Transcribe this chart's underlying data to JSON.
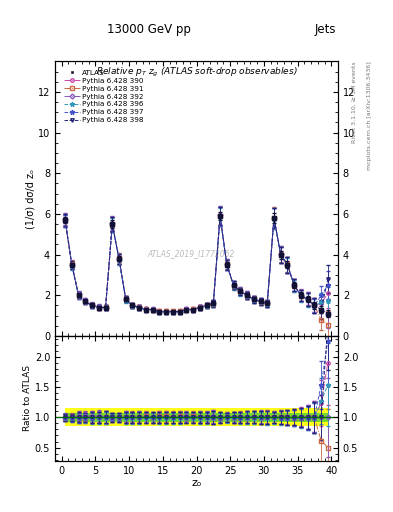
{
  "title_top": "13000 GeV pp",
  "title_right": "Jets",
  "plot_title": "Relative $p_{T}$ $z_{g}$ (ATLAS soft-drop observables)",
  "ylabel_main": "(1/σ) dσ/d zₒ",
  "ylabel_ratio": "Ratio to ATLAS",
  "xlabel": "zₒ",
  "right_label_top": "Rivet 3.1.10, ≥ 3M events",
  "right_label_bottom": "mcplots.cern.ch [arXiv:1306.3436]",
  "watermark": "ATLAS_2019_I1772062",
  "xlim": [
    -1,
    41
  ],
  "ylim_main": [
    0,
    13.5
  ],
  "ylim_ratio": [
    0.28,
    2.35
  ],
  "yticks_main": [
    0,
    2,
    4,
    6,
    8,
    10,
    12
  ],
  "yticks_ratio": [
    0.5,
    1.0,
    1.5,
    2.0
  ],
  "x_data": [
    0.5,
    1.5,
    2.5,
    3.5,
    4.5,
    5.5,
    6.5,
    7.5,
    8.5,
    9.5,
    10.5,
    11.5,
    12.5,
    13.5,
    14.5,
    15.5,
    16.5,
    17.5,
    18.5,
    19.5,
    20.5,
    21.5,
    22.5,
    23.5,
    24.5,
    25.5,
    26.5,
    27.5,
    28.5,
    29.5,
    30.5,
    31.5,
    32.5,
    33.5,
    34.5,
    35.5,
    36.5,
    37.5,
    38.5,
    39.5
  ],
  "atlas_y": [
    5.7,
    3.5,
    2.0,
    1.7,
    1.5,
    1.4,
    1.4,
    5.5,
    3.8,
    1.8,
    1.5,
    1.4,
    1.3,
    1.3,
    1.2,
    1.2,
    1.2,
    1.2,
    1.3,
    1.3,
    1.4,
    1.5,
    1.6,
    5.9,
    3.5,
    2.5,
    2.2,
    2.0,
    1.8,
    1.7,
    1.6,
    5.8,
    4.0,
    3.5,
    2.5,
    2.0,
    1.8,
    1.5,
    1.3,
    1.1
  ],
  "atlas_yerr": [
    0.15,
    0.08,
    0.07,
    0.06,
    0.06,
    0.06,
    0.07,
    0.18,
    0.12,
    0.07,
    0.06,
    0.06,
    0.05,
    0.05,
    0.05,
    0.05,
    0.05,
    0.05,
    0.05,
    0.05,
    0.06,
    0.06,
    0.07,
    0.22,
    0.12,
    0.1,
    0.09,
    0.09,
    0.08,
    0.08,
    0.08,
    0.25,
    0.2,
    0.18,
    0.15,
    0.14,
    0.15,
    0.15,
    0.17,
    0.18
  ],
  "atlas_color": "#111133",
  "atlas_marker": "s",
  "atlas_markersize": 3.5,
  "band_yellow": [
    0.85,
    1.15
  ],
  "band_green": [
    0.93,
    1.07
  ],
  "band_color_yellow": "#ffff00",
  "band_color_green": "#33cc33",
  "series": [
    {
      "label": "Pythia 6.428 390",
      "color": "#cc44aa",
      "linestyle": "-.",
      "marker": "o",
      "markersize": 2.5,
      "mfc": "none",
      "y": [
        5.72,
        3.48,
        2.02,
        1.72,
        1.52,
        1.42,
        1.38,
        5.52,
        3.78,
        1.82,
        1.5,
        1.4,
        1.3,
        1.3,
        1.21,
        1.21,
        1.2,
        1.21,
        1.31,
        1.31,
        1.4,
        1.51,
        1.62,
        5.91,
        3.5,
        2.51,
        2.2,
        2.01,
        1.8,
        1.7,
        1.61,
        5.8,
        4.0,
        3.48,
        2.5,
        2.02,
        1.82,
        1.52,
        1.6,
        2.1
      ],
      "yerr": [
        0.3,
        0.2,
        0.15,
        0.12,
        0.12,
        0.12,
        0.12,
        0.35,
        0.25,
        0.15,
        0.12,
        0.12,
        0.1,
        0.1,
        0.1,
        0.1,
        0.1,
        0.1,
        0.1,
        0.1,
        0.12,
        0.12,
        0.15,
        0.45,
        0.25,
        0.2,
        0.18,
        0.18,
        0.16,
        0.16,
        0.16,
        0.5,
        0.4,
        0.38,
        0.3,
        0.28,
        0.32,
        0.35,
        0.45,
        0.7
      ]
    },
    {
      "label": "Pythia 6.428 391",
      "color": "#cc6644",
      "linestyle": "-.",
      "marker": "s",
      "markersize": 2.5,
      "mfc": "none",
      "y": [
        5.68,
        3.52,
        1.98,
        1.68,
        1.5,
        1.4,
        1.42,
        5.48,
        3.82,
        1.8,
        1.52,
        1.42,
        1.32,
        1.28,
        1.22,
        1.22,
        1.21,
        1.22,
        1.29,
        1.32,
        1.41,
        1.5,
        1.59,
        5.88,
        3.52,
        2.48,
        2.22,
        1.98,
        1.82,
        1.68,
        1.62,
        5.82,
        4.02,
        3.52,
        2.48,
        1.98,
        1.8,
        1.5,
        0.8,
        0.55
      ],
      "yerr": [
        0.3,
        0.2,
        0.15,
        0.12,
        0.12,
        0.12,
        0.12,
        0.35,
        0.25,
        0.15,
        0.12,
        0.12,
        0.1,
        0.1,
        0.1,
        0.1,
        0.1,
        0.1,
        0.1,
        0.1,
        0.12,
        0.12,
        0.15,
        0.45,
        0.25,
        0.2,
        0.18,
        0.18,
        0.16,
        0.16,
        0.16,
        0.5,
        0.4,
        0.38,
        0.3,
        0.28,
        0.32,
        0.35,
        0.5,
        0.7
      ]
    },
    {
      "label": "Pythia 6.428 392",
      "color": "#8855bb",
      "linestyle": "-.",
      "marker": "D",
      "markersize": 2.5,
      "mfc": "none",
      "y": [
        5.75,
        3.5,
        2.05,
        1.75,
        1.53,
        1.43,
        1.4,
        5.55,
        3.8,
        1.82,
        1.51,
        1.41,
        1.31,
        1.31,
        1.2,
        1.2,
        1.2,
        1.2,
        1.32,
        1.3,
        1.42,
        1.52,
        1.63,
        5.93,
        3.52,
        2.52,
        2.21,
        2.02,
        1.81,
        1.72,
        1.6,
        5.81,
        4.01,
        3.5,
        2.52,
        2.0,
        1.82,
        1.52,
        1.3,
        1.1
      ],
      "yerr": [
        0.3,
        0.2,
        0.15,
        0.12,
        0.12,
        0.12,
        0.12,
        0.35,
        0.25,
        0.15,
        0.12,
        0.12,
        0.1,
        0.1,
        0.1,
        0.1,
        0.1,
        0.1,
        0.1,
        0.1,
        0.12,
        0.12,
        0.15,
        0.45,
        0.25,
        0.2,
        0.18,
        0.18,
        0.16,
        0.16,
        0.16,
        0.5,
        0.4,
        0.38,
        0.3,
        0.28,
        0.32,
        0.35,
        0.45,
        0.7
      ]
    },
    {
      "label": "Pythia 6.428 396",
      "color": "#3399bb",
      "linestyle": "--",
      "marker": "*",
      "markersize": 3.5,
      "mfc": "none",
      "y": [
        5.65,
        3.45,
        1.97,
        1.67,
        1.48,
        1.38,
        1.39,
        5.46,
        3.76,
        1.78,
        1.48,
        1.38,
        1.28,
        1.28,
        1.18,
        1.19,
        1.18,
        1.19,
        1.28,
        1.29,
        1.39,
        1.48,
        1.58,
        5.86,
        3.48,
        2.48,
        2.17,
        1.98,
        1.78,
        1.68,
        1.58,
        5.77,
        3.97,
        3.47,
        2.47,
        1.97,
        1.77,
        1.48,
        1.65,
        1.7
      ],
      "yerr": [
        0.3,
        0.2,
        0.15,
        0.12,
        0.12,
        0.12,
        0.12,
        0.35,
        0.25,
        0.15,
        0.12,
        0.12,
        0.1,
        0.1,
        0.1,
        0.1,
        0.1,
        0.1,
        0.1,
        0.1,
        0.12,
        0.12,
        0.15,
        0.45,
        0.25,
        0.2,
        0.18,
        0.18,
        0.16,
        0.16,
        0.16,
        0.5,
        0.4,
        0.38,
        0.3,
        0.28,
        0.32,
        0.35,
        0.45,
        0.7
      ]
    },
    {
      "label": "Pythia 6.428 397",
      "color": "#4455cc",
      "linestyle": "--",
      "marker": "*",
      "markersize": 3.5,
      "mfc": "none",
      "y": [
        5.67,
        3.47,
        1.99,
        1.69,
        1.49,
        1.4,
        1.41,
        5.48,
        3.78,
        1.8,
        1.5,
        1.4,
        1.3,
        1.3,
        1.2,
        1.2,
        1.2,
        1.2,
        1.3,
        1.3,
        1.4,
        1.5,
        1.6,
        5.88,
        3.5,
        2.5,
        2.19,
        2.0,
        1.8,
        1.7,
        1.6,
        5.79,
        3.99,
        3.49,
        2.49,
        1.99,
        1.79,
        1.49,
        2.0,
        2.5
      ],
      "yerr": [
        0.3,
        0.2,
        0.15,
        0.12,
        0.12,
        0.12,
        0.12,
        0.35,
        0.25,
        0.15,
        0.12,
        0.12,
        0.1,
        0.1,
        0.1,
        0.1,
        0.1,
        0.1,
        0.1,
        0.1,
        0.12,
        0.12,
        0.15,
        0.45,
        0.25,
        0.2,
        0.18,
        0.18,
        0.16,
        0.16,
        0.16,
        0.5,
        0.4,
        0.38,
        0.3,
        0.28,
        0.32,
        0.35,
        0.45,
        0.7
      ]
    },
    {
      "label": "Pythia 6.428 398",
      "color": "#222277",
      "linestyle": "--",
      "marker": "v",
      "markersize": 2.5,
      "mfc": "none",
      "y": [
        5.7,
        3.5,
        2.0,
        1.7,
        1.5,
        1.4,
        1.4,
        5.5,
        3.8,
        1.8,
        1.5,
        1.4,
        1.3,
        1.3,
        1.2,
        1.2,
        1.2,
        1.2,
        1.3,
        1.3,
        1.4,
        1.5,
        1.6,
        5.9,
        3.5,
        2.5,
        2.2,
        2.0,
        1.8,
        1.7,
        1.6,
        5.8,
        4.0,
        3.5,
        2.5,
        2.0,
        1.8,
        1.5,
        1.3,
        2.8
      ],
      "yerr": [
        0.3,
        0.2,
        0.15,
        0.12,
        0.12,
        0.12,
        0.12,
        0.35,
        0.25,
        0.15,
        0.12,
        0.12,
        0.1,
        0.1,
        0.1,
        0.1,
        0.1,
        0.1,
        0.1,
        0.1,
        0.12,
        0.12,
        0.15,
        0.45,
        0.25,
        0.2,
        0.18,
        0.18,
        0.16,
        0.16,
        0.16,
        0.5,
        0.4,
        0.38,
        0.3,
        0.28,
        0.32,
        0.35,
        0.45,
        0.7
      ]
    }
  ]
}
